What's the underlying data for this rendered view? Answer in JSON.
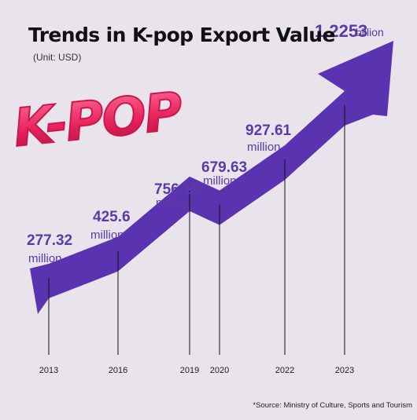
{
  "header": {
    "title": "Trends in K-pop Export Value",
    "unit": "(Unit: USD)"
  },
  "logo": {
    "text": "K-POP",
    "color": "#e8235e"
  },
  "source": "*Source: Ministry of Culture, Sports and Tourism",
  "colors": {
    "arrow": "#5a34b0",
    "value_text": "#5a3ba6",
    "background": "#e9e3ec"
  },
  "chart_data": {
    "type": "line",
    "title": "Trends in K-pop Export Value",
    "xlabel": "",
    "ylabel": "",
    "unit": "USD",
    "categories": [
      "2013",
      "2016",
      "2019",
      "2020",
      "2022",
      "2023"
    ],
    "values": [
      277320000,
      425600000,
      756190000,
      679630000,
      927610000,
      1225300000
    ],
    "data_labels": [
      {
        "value": "277.32",
        "unit": "million"
      },
      {
        "value": "425.6",
        "unit": "million"
      },
      {
        "value": "756.19",
        "unit": "million"
      },
      {
        "value": "679.63",
        "unit": "million"
      },
      {
        "value": "927.61",
        "unit": "million"
      },
      {
        "value": "1.2253",
        "unit": "billion"
      }
    ],
    "grid": false,
    "legend": "none"
  }
}
